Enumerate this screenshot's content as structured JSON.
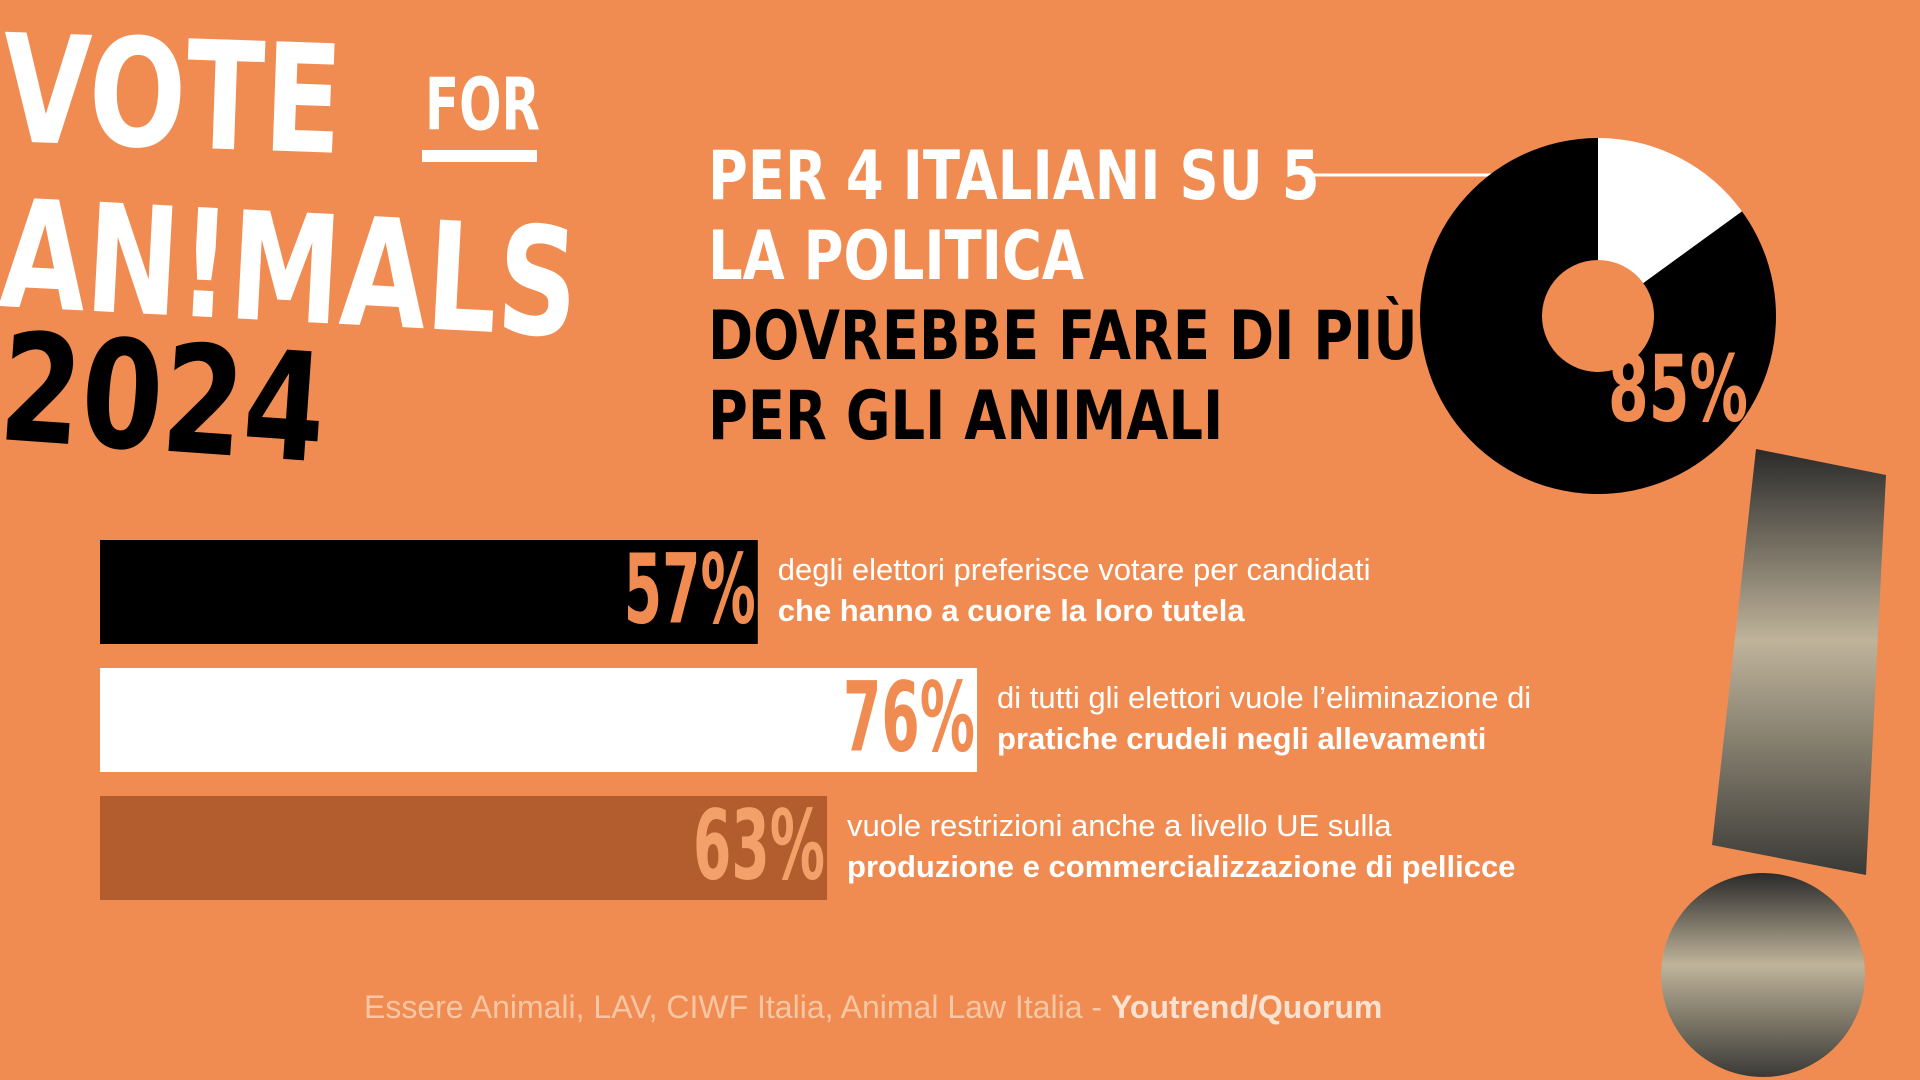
{
  "logo": {
    "vote": "VOTE",
    "for": "FOR",
    "animals": "AN!MALS",
    "year": "2024"
  },
  "chart_data": [
    {
      "type": "pie",
      "title_lines": [
        "PER 4 ITALIANI SU 5",
        "LA POLITICA",
        "DOVREBBE FARE DI PIÙ",
        "PER GLI ANIMALI"
      ],
      "title_colors": [
        "#ffffff",
        "#ffffff",
        "#000000",
        "#000000"
      ],
      "values": [
        85,
        15
      ],
      "value_labels": [
        "85%",
        null
      ],
      "colors": [
        "#000000",
        "#ffffff"
      ]
    },
    {
      "type": "bar",
      "orientation": "horizontal",
      "values": [
        57,
        76,
        63
      ],
      "value_labels": [
        "57%",
        "76%",
        "63%"
      ],
      "colors": [
        "#000000",
        "#ffffff",
        "#b35c2e"
      ],
      "label_colors": [
        "#f08c52",
        "#f08c52",
        "#f4a06a"
      ],
      "xlim": [
        0,
        100
      ],
      "descriptions": [
        {
          "normal": "degli elettori preferisce votare per candidati",
          "bold": "che hanno a cuore la loro tutela"
        },
        {
          "normal": "di tutti gli elettori vuole l’eliminazione di",
          "bold": "pratiche crudeli negli allevamenti"
        },
        {
          "normal": "vuole restrizioni anche a livello UE sulla",
          "bold": "produzione e commercializzazione di pellicce"
        }
      ]
    }
  ],
  "source": {
    "text": "Essere Animali, LAV, CIWF Italia, Animal Law Italia - ",
    "bold": "Youtrend/Quorum"
  }
}
